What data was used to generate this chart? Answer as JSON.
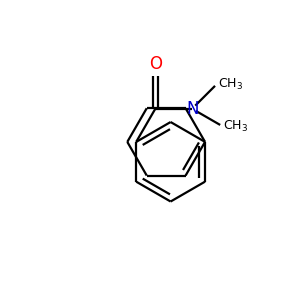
{
  "background_color": "#ffffff",
  "bond_color": "#000000",
  "oxygen_color": "#ff0000",
  "nitrogen_color": "#0000cc",
  "line_width": 1.6,
  "figsize": [
    3.0,
    3.0
  ],
  "dpi": 100,
  "xlim": [
    0,
    10
  ],
  "ylim": [
    0,
    10
  ]
}
